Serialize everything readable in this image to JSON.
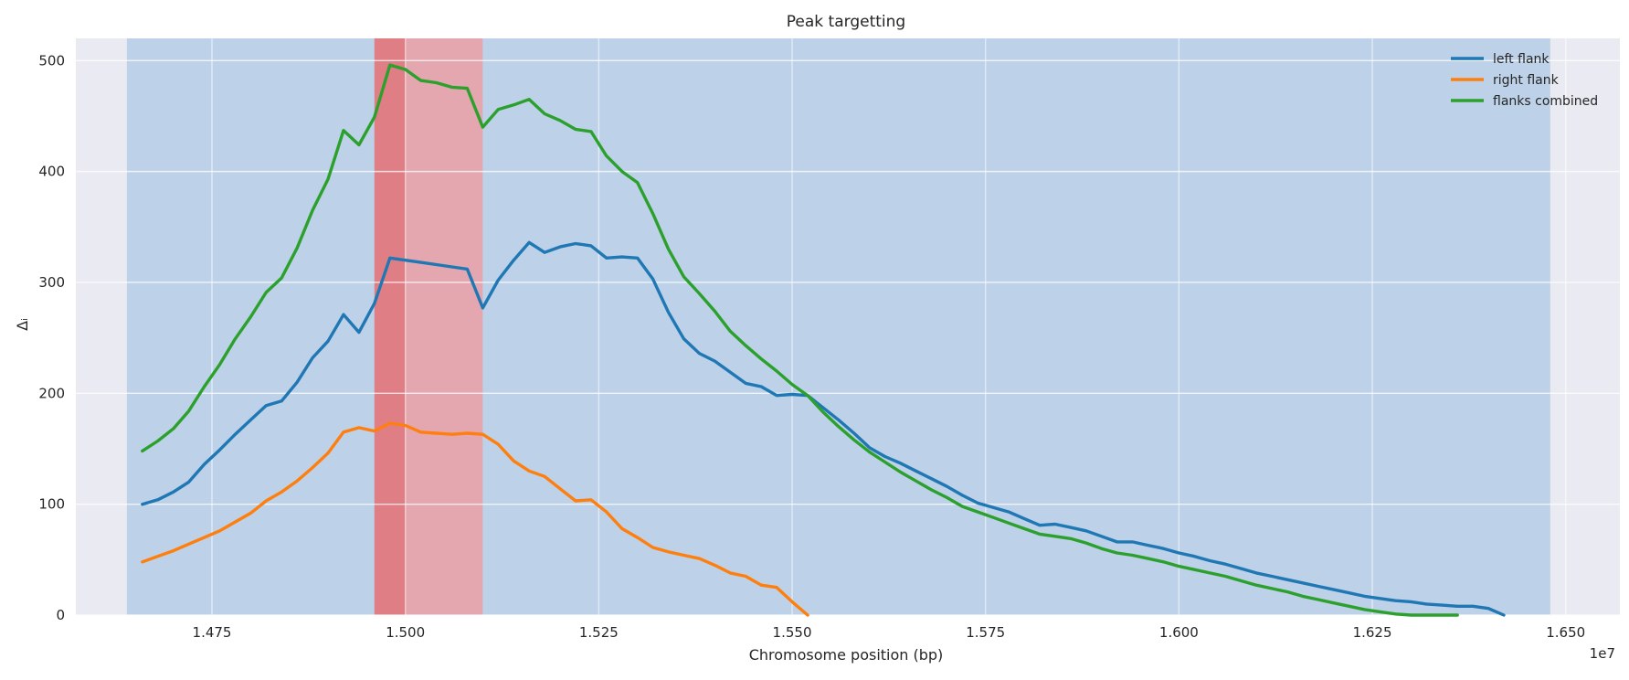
{
  "colors": {
    "background": "#eaeaf2",
    "grid": "#ffffff",
    "region_wide": "#b9cfe7",
    "region_peak": "#e7a3aa",
    "region_core": "#e07b82",
    "left_flank": "#1f77b4",
    "right_flank": "#ff7f0e",
    "flanks_combined": "#2ca02c"
  },
  "chart_data": {
    "type": "line",
    "title": "Peak targetting",
    "xlabel": "Chromosome position (bp)",
    "ylabel": "Δᵢ",
    "x_offset_label": "1e7",
    "xlim": [
      14574000,
      16570000
    ],
    "ylim": [
      0,
      520
    ],
    "x_ticks": [
      14750000,
      15000000,
      15250000,
      15500000,
      15750000,
      16000000,
      16250000,
      16500000
    ],
    "x_tick_labels": [
      "1.475",
      "1.500",
      "1.525",
      "1.550",
      "1.575",
      "1.600",
      "1.625",
      "1.650"
    ],
    "y_ticks": [
      0,
      100,
      200,
      300,
      400,
      500
    ],
    "y_tick_labels": [
      "0",
      "100",
      "200",
      "300",
      "400",
      "500"
    ],
    "grid": true,
    "legend_position": "top-right",
    "shaded_regions": [
      {
        "x_start": 14640000,
        "x_end": 16480000,
        "color_key": "region_wide"
      },
      {
        "x_start": 14960000,
        "x_end": 15100000,
        "color_key": "region_peak"
      },
      {
        "x_start": 14960000,
        "x_end": 15000000,
        "color_key": "region_core"
      }
    ],
    "series": [
      {
        "name": "left flank",
        "color_key": "left_flank",
        "x": [
          14660000,
          14680000,
          14700000,
          14720000,
          14740000,
          14760000,
          14780000,
          14800000,
          14820000,
          14840000,
          14860000,
          14880000,
          14900000,
          14920000,
          14940000,
          14960000,
          14980000,
          15000000,
          15020000,
          15040000,
          15060000,
          15080000,
          15100000,
          15120000,
          15140000,
          15160000,
          15180000,
          15200000,
          15220000,
          15240000,
          15260000,
          15280000,
          15300000,
          15320000,
          15340000,
          15360000,
          15380000,
          15400000,
          15420000,
          15440000,
          15460000,
          15480000,
          15500000,
          15520000,
          15540000,
          15560000,
          15580000,
          15600000,
          15620000,
          15640000,
          15660000,
          15680000,
          15700000,
          15720000,
          15740000,
          15760000,
          15780000,
          15800000,
          15820000,
          15840000,
          15860000,
          15880000,
          15900000,
          15920000,
          15940000,
          15960000,
          15980000,
          16000000,
          16020000,
          16040000,
          16060000,
          16080000,
          16100000,
          16120000,
          16140000,
          16160000,
          16180000,
          16200000,
          16220000,
          16240000,
          16260000,
          16280000,
          16300000,
          16320000,
          16340000,
          16360000,
          16380000,
          16400000,
          16420000
        ],
        "y": [
          100,
          104,
          111,
          120,
          136,
          149,
          163,
          176,
          189,
          193,
          210,
          232,
          247,
          271,
          255,
          281,
          322,
          320,
          318,
          316,
          314,
          312,
          277,
          302,
          320,
          336,
          327,
          332,
          335,
          333,
          322,
          323,
          322,
          303,
          273,
          249,
          236,
          229,
          219,
          209,
          206,
          198,
          199,
          198,
          187,
          176,
          164,
          151,
          143,
          137,
          130,
          123,
          116,
          108,
          101,
          97,
          93,
          87,
          81,
          82,
          79,
          76,
          71,
          66,
          66,
          63,
          60,
          56,
          53,
          49,
          46,
          42,
          38,
          35,
          32,
          29,
          26,
          23,
          20,
          17,
          15,
          13,
          12,
          10,
          9,
          8,
          8,
          6,
          0
        ]
      },
      {
        "name": "right flank",
        "color_key": "right_flank",
        "x": [
          14660000,
          14680000,
          14700000,
          14720000,
          14740000,
          14760000,
          14780000,
          14800000,
          14820000,
          14840000,
          14860000,
          14880000,
          14900000,
          14920000,
          14940000,
          14960000,
          14980000,
          15000000,
          15020000,
          15040000,
          15060000,
          15080000,
          15100000,
          15120000,
          15140000,
          15160000,
          15180000,
          15200000,
          15220000,
          15240000,
          15260000,
          15280000,
          15300000,
          15320000,
          15340000,
          15360000,
          15380000,
          15400000,
          15420000,
          15440000,
          15460000,
          15480000,
          15500000,
          15520000
        ],
        "y": [
          48,
          53,
          58,
          64,
          70,
          76,
          84,
          92,
          103,
          111,
          121,
          133,
          146,
          165,
          169,
          166,
          173,
          171,
          165,
          164,
          163,
          164,
          163,
          154,
          139,
          130,
          125,
          114,
          103,
          104,
          93,
          78,
          70,
          61,
          57,
          54,
          51,
          45,
          38,
          35,
          27,
          25,
          12,
          0
        ]
      },
      {
        "name": "flanks combined",
        "color_key": "flanks_combined",
        "x": [
          14660000,
          14680000,
          14700000,
          14720000,
          14740000,
          14760000,
          14780000,
          14800000,
          14820000,
          14840000,
          14860000,
          14880000,
          14900000,
          14920000,
          14940000,
          14960000,
          14980000,
          15000000,
          15020000,
          15040000,
          15060000,
          15080000,
          15100000,
          15120000,
          15140000,
          15160000,
          15180000,
          15200000,
          15220000,
          15240000,
          15260000,
          15280000,
          15300000,
          15320000,
          15340000,
          15360000,
          15380000,
          15400000,
          15420000,
          15440000,
          15460000,
          15480000,
          15500000,
          15520000,
          15540000,
          15560000,
          15580000,
          15600000,
          15620000,
          15640000,
          15660000,
          15680000,
          15700000,
          15720000,
          15740000,
          15760000,
          15780000,
          15800000,
          15820000,
          15840000,
          15860000,
          15880000,
          15900000,
          15920000,
          15940000,
          15960000,
          15980000,
          16000000,
          16020000,
          16040000,
          16060000,
          16080000,
          16100000,
          16120000,
          16140000,
          16160000,
          16180000,
          16200000,
          16220000,
          16240000,
          16260000,
          16280000,
          16300000,
          16320000,
          16340000,
          16360000
        ],
        "y": [
          148,
          157,
          168,
          184,
          206,
          226,
          249,
          269,
          291,
          304,
          331,
          365,
          393,
          437,
          424,
          449,
          496,
          492,
          482,
          480,
          476,
          475,
          440,
          456,
          460,
          465,
          452,
          446,
          438,
          436,
          414,
          400,
          390,
          362,
          330,
          305,
          290,
          274,
          256,
          243,
          231,
          220,
          208,
          198,
          183,
          170,
          158,
          147,
          138,
          129,
          121,
          113,
          106,
          98,
          93,
          88,
          83,
          78,
          73,
          71,
          69,
          65,
          60,
          56,
          54,
          51,
          48,
          44,
          41,
          38,
          35,
          31,
          27,
          24,
          21,
          17,
          14,
          11,
          8,
          5,
          3,
          1,
          0,
          0,
          0,
          0
        ]
      }
    ]
  }
}
